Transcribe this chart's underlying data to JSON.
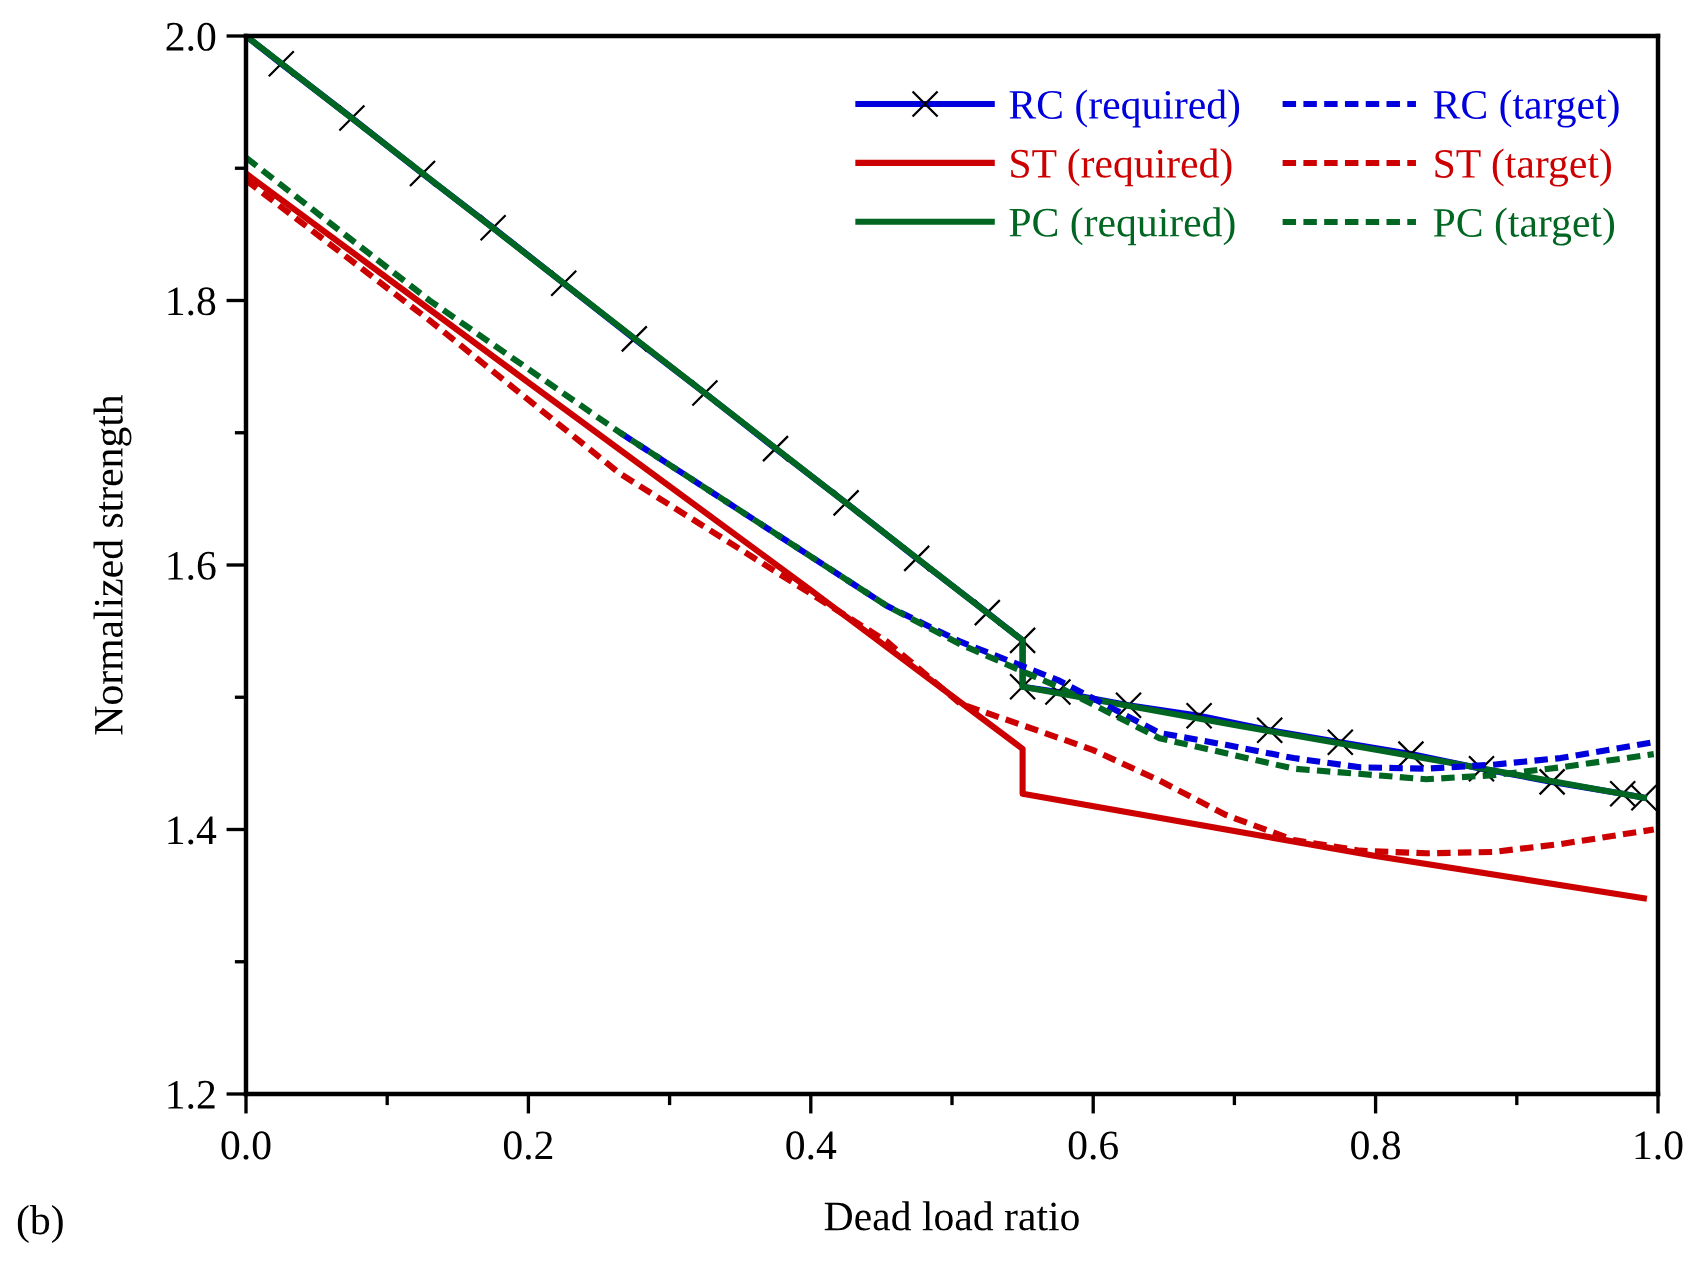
{
  "chart_data": {
    "type": "line",
    "xlabel": "Dead load ratio",
    "ylabel": "Normalized strength",
    "xlim": [
      0,
      1.0
    ],
    "ylim": [
      1.2,
      2.0
    ],
    "xticks": [
      "0.0",
      {
        "value": 0.1,
        "label": null
      },
      {
        "value": 0.2,
        "label": "0.2"
      },
      {
        "value": 0.3,
        "label": null
      },
      {
        "value": 0.4,
        "label": "0.4"
      },
      {
        "value": 0.5,
        "label": null
      },
      {
        "value": 0.6,
        "label": "0.6"
      },
      {
        "value": 0.7,
        "label": null
      },
      {
        "value": 0.8,
        "label": "0.8"
      },
      {
        "value": 0.9,
        "label": null
      },
      {
        "value": 1.0,
        "label": "1.0"
      }
    ],
    "yticks": [
      {
        "value": 1.2,
        "label": "1.2"
      },
      {
        "value": 1.3,
        "label": null
      },
      {
        "value": 1.4,
        "label": "1.4"
      },
      {
        "value": 1.5,
        "label": null
      },
      {
        "value": 1.6,
        "label": "1.6"
      },
      {
        "value": 1.7,
        "label": null
      },
      {
        "value": 1.8,
        "label": "1.8"
      },
      {
        "value": 1.9,
        "label": null
      },
      {
        "value": 2.0,
        "label": "2.0"
      }
    ],
    "grid": false,
    "legend": "top right",
    "annotations": [
      "(b)"
    ],
    "series": [
      {
        "name": "RC (required)",
        "color": "#0000dd",
        "marker": "cross",
        "line_style": "solid",
        "x": [
          0,
          0.025,
          0.075,
          0.125,
          0.175,
          0.225,
          0.275,
          0.325,
          0.375,
          0.425,
          0.475,
          0.525,
          0.55,
          0.55,
          0.575,
          0.625,
          0.675,
          0.725,
          0.775,
          0.825,
          0.875,
          0.925,
          0.975,
          0.99
        ],
        "values": [
          2.0,
          1.979,
          1.938,
          1.896,
          1.855,
          1.813,
          1.771,
          1.73,
          1.688,
          1.647,
          1.605,
          1.564,
          1.543,
          1.508,
          1.504,
          1.494,
          1.486,
          1.475,
          1.466,
          1.457,
          1.446,
          1.436,
          1.427,
          1.424
        ]
      },
      {
        "name": "ST (required)",
        "color": "#cc0000",
        "marker": "none",
        "line_style": "solid",
        "x": [
          0,
          0.2,
          0.4,
          0.55,
          0.55,
          0.8,
          0.99
        ],
        "values": [
          1.896,
          1.738,
          1.581,
          1.461,
          1.427,
          1.38,
          1.348
        ]
      },
      {
        "name": "PC (required)",
        "color": "#006622",
        "marker": "none",
        "line_style": "solid",
        "x": [
          0,
          0.55,
          0.55,
          0.7,
          0.85,
          0.99
        ],
        "values": [
          2.0,
          1.543,
          1.508,
          1.479,
          1.451,
          1.424
        ]
      },
      {
        "name": "RC (target)",
        "color": "#0000dd",
        "marker": "none",
        "line_style": "dashed",
        "x": [
          0.265,
          0.454,
          0.506,
          0.575,
          0.647,
          0.694,
          0.742,
          0.789,
          0.836,
          0.883,
          0.931,
          0.997
        ],
        "values": [
          1.7,
          1.569,
          1.542,
          1.513,
          1.473,
          1.464,
          1.454,
          1.447,
          1.446,
          1.449,
          1.454,
          1.466
        ]
      },
      {
        "name": "ST (target)",
        "color": "#cc0000",
        "marker": "none",
        "line_style": "dashed",
        "x": [
          0,
          0.13,
          0.265,
          0.454,
          0.506,
          0.563,
          0.6,
          0.647,
          0.694,
          0.742,
          0.789,
          0.836,
          0.883,
          0.931,
          0.997
        ],
        "values": [
          1.891,
          1.785,
          1.669,
          1.542,
          1.495,
          1.474,
          1.46,
          1.437,
          1.411,
          1.392,
          1.384,
          1.382,
          1.383,
          1.389,
          1.4
        ]
      },
      {
        "name": "PC (target)",
        "color": "#006622",
        "marker": "none",
        "line_style": "dashed",
        "x": [
          0,
          0.13,
          0.265,
          0.454,
          0.506,
          0.575,
          0.647,
          0.742,
          0.836,
          0.883,
          0.931,
          0.997
        ],
        "values": [
          1.908,
          1.8,
          1.7,
          1.569,
          1.54,
          1.508,
          1.469,
          1.446,
          1.438,
          1.441,
          1.447,
          1.457
        ]
      }
    ]
  }
}
